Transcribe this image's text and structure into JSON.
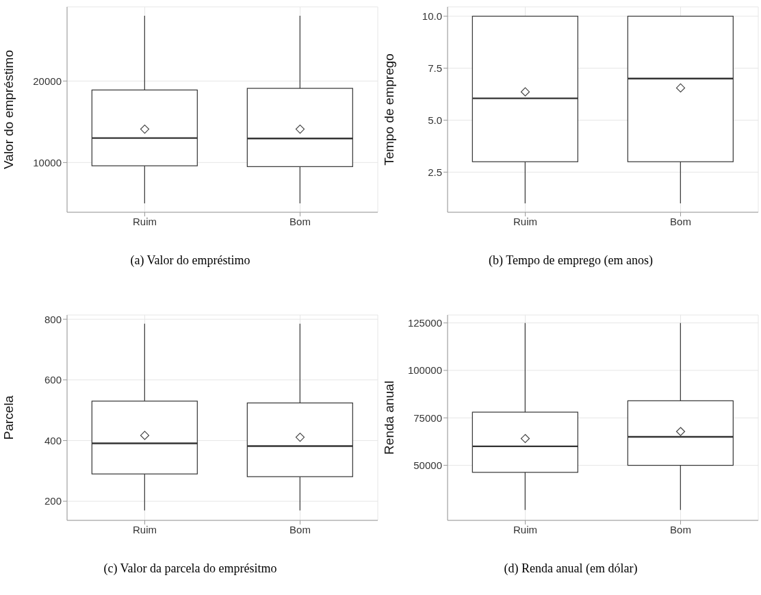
{
  "chart_data": [
    {
      "type": "box",
      "categories": [
        "Ruim",
        "Bom"
      ],
      "ylabel": "Valor do empréstimo",
      "ylim": [
        3900,
        29100
      ],
      "yticks": [
        10000,
        20000
      ],
      "grid": true,
      "marker": "diamond",
      "annotations": [
        "(a) Valor do empréstimo"
      ],
      "boxes": [
        {
          "low": 5000,
          "q1": 9600,
          "median": 13000,
          "q3": 18900,
          "high": 28000,
          "mean": 14100
        },
        {
          "low": 5000,
          "q1": 9500,
          "median": 12950,
          "q3": 19100,
          "high": 28000,
          "mean": 14100
        }
      ]
    },
    {
      "type": "box",
      "categories": [
        "Ruim",
        "Bom"
      ],
      "ylabel": "Tempo de emprego",
      "ylim": [
        0.57,
        10.45
      ],
      "yticks": [
        {
          "value": 2.5,
          "label": "2.5"
        },
        {
          "value": 5,
          "label": "5.0"
        },
        {
          "value": 7.5,
          "label": "7.5"
        },
        {
          "value": 10,
          "label": "10.0"
        }
      ],
      "grid": true,
      "marker": "diamond",
      "annotations": [
        "(b) Tempo de emprego (em anos)"
      ],
      "boxes": [
        {
          "low": 1,
          "q1": 3,
          "median": 6.05,
          "q3": 10,
          "high": 10,
          "mean": 6.36
        },
        {
          "low": 1,
          "q1": 3,
          "median": 7,
          "q3": 10,
          "high": 10,
          "mean": 6.55
        }
      ]
    },
    {
      "type": "box",
      "categories": [
        "Ruim",
        "Bom"
      ],
      "ylabel": "Parcela",
      "ylim": [
        137,
        814
      ],
      "yticks": [
        200,
        400,
        600,
        800
      ],
      "grid": true,
      "marker": "diamond",
      "annotations": [
        "(c) Valor da parcela do emprésitmo"
      ],
      "boxes": [
        {
          "low": 170,
          "q1": 290,
          "median": 391,
          "q3": 530,
          "high": 785,
          "mean": 417
        },
        {
          "low": 170,
          "q1": 281,
          "median": 382,
          "q3": 524,
          "high": 785,
          "mean": 411
        }
      ]
    },
    {
      "type": "box",
      "categories": [
        "Ruim",
        "Bom"
      ],
      "ylabel": "Renda anual",
      "ylim": [
        21000,
        129200
      ],
      "yticks": [
        50000,
        75000,
        100000,
        125000
      ],
      "grid": true,
      "marker": "diamond",
      "annotations": [
        "(d) Renda anual (em dólar)"
      ],
      "boxes": [
        {
          "low": 26500,
          "q1": 46300,
          "median": 60000,
          "q3": 78000,
          "high": 125000,
          "mean": 64100
        },
        {
          "low": 26500,
          "q1": 50000,
          "median": 65000,
          "q3": 84000,
          "high": 125000,
          "mean": 67800
        }
      ]
    }
  ]
}
